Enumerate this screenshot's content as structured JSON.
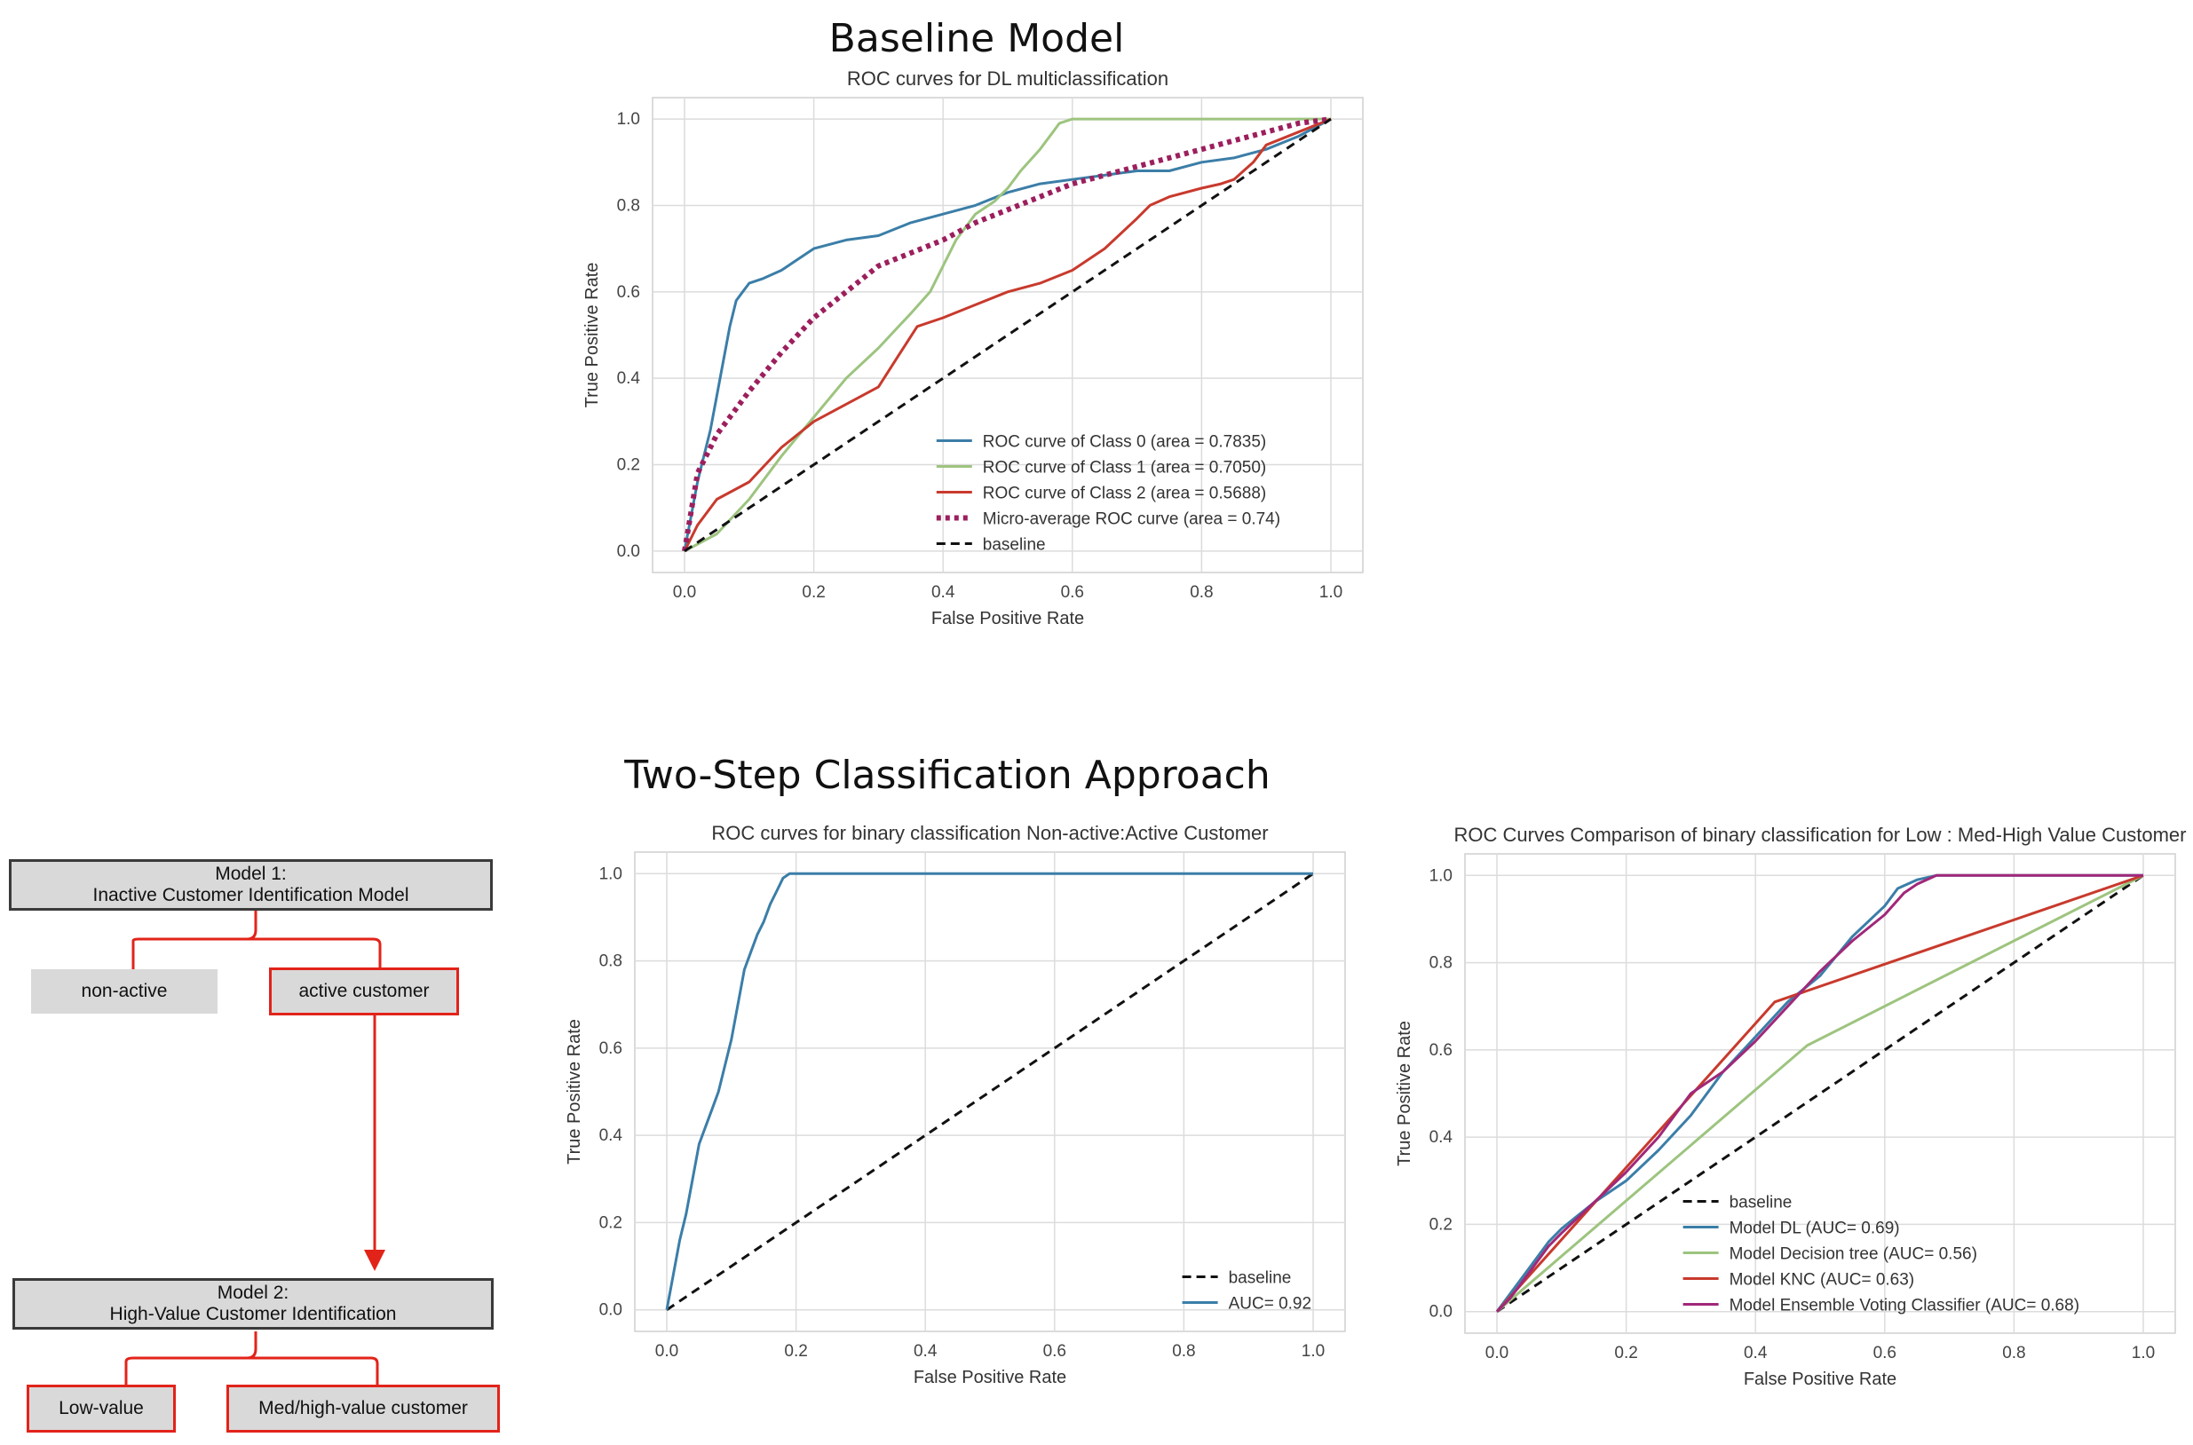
{
  "headings": {
    "top": "Baseline Model",
    "bottom": "Two-Step Classification Approach"
  },
  "flow": {
    "model1": "Model 1:\nInactive Customer Identification Model",
    "non_active": "non-active",
    "active": "active customer",
    "model2": "Model 2:\nHigh-Value Customer Identification",
    "low_value": "Low-value",
    "high_value": "Med/high-value customer",
    "colors": {
      "box_fill": "#d9d9d9",
      "accent": "#e2231a"
    }
  },
  "chart_data": [
    {
      "type": "line",
      "title": "ROC curves for DL multiclassification",
      "xlabel": "False Positive Rate",
      "ylabel": "True Positive Rate",
      "xlim": [
        0,
        1
      ],
      "ylim": [
        0,
        1
      ],
      "ticks": [
        0.0,
        0.2,
        0.4,
        0.6,
        0.8,
        1.0
      ],
      "grid": true,
      "legend_position": "bottom-right",
      "series": [
        {
          "name": "ROC curve of Class 0 (area = 0.7835)",
          "color": "#3b7ea8",
          "style": "solid",
          "x": [
            0,
            0.005,
            0.01,
            0.015,
            0.02,
            0.03,
            0.04,
            0.05,
            0.06,
            0.07,
            0.08,
            0.09,
            0.1,
            0.12,
            0.15,
            0.18,
            0.2,
            0.25,
            0.3,
            0.35,
            0.4,
            0.45,
            0.5,
            0.55,
            0.6,
            0.65,
            0.7,
            0.75,
            0.8,
            0.85,
            0.9,
            0.95,
            1.0
          ],
          "y": [
            0,
            0.04,
            0.08,
            0.12,
            0.16,
            0.22,
            0.28,
            0.36,
            0.44,
            0.52,
            0.58,
            0.6,
            0.62,
            0.63,
            0.65,
            0.68,
            0.7,
            0.72,
            0.73,
            0.76,
            0.78,
            0.8,
            0.83,
            0.85,
            0.86,
            0.87,
            0.88,
            0.88,
            0.9,
            0.91,
            0.93,
            0.96,
            1.0
          ]
        },
        {
          "name": "ROC curve of Class 1 (area = 0.7050)",
          "color": "#9dc47f",
          "style": "solid",
          "x": [
            0,
            0.05,
            0.1,
            0.15,
            0.2,
            0.25,
            0.3,
            0.35,
            0.38,
            0.4,
            0.42,
            0.45,
            0.48,
            0.5,
            0.52,
            0.55,
            0.57,
            0.58,
            0.6,
            0.7,
            0.8,
            0.9,
            1.0
          ],
          "y": [
            0,
            0.04,
            0.12,
            0.22,
            0.31,
            0.4,
            0.47,
            0.55,
            0.6,
            0.66,
            0.72,
            0.78,
            0.81,
            0.84,
            0.88,
            0.93,
            0.97,
            0.99,
            1.0,
            1.0,
            1.0,
            1.0,
            1.0
          ]
        },
        {
          "name": "ROC curve of Class 2 (area = 0.5688)",
          "color": "#c83a2d",
          "style": "solid",
          "x": [
            0,
            0.02,
            0.05,
            0.1,
            0.15,
            0.2,
            0.25,
            0.3,
            0.33,
            0.36,
            0.4,
            0.45,
            0.5,
            0.55,
            0.6,
            0.65,
            0.7,
            0.72,
            0.75,
            0.8,
            0.83,
            0.85,
            0.88,
            0.9,
            0.95,
            1.0
          ],
          "y": [
            0,
            0.06,
            0.12,
            0.16,
            0.24,
            0.3,
            0.34,
            0.38,
            0.45,
            0.52,
            0.54,
            0.57,
            0.6,
            0.62,
            0.65,
            0.7,
            0.77,
            0.8,
            0.82,
            0.84,
            0.85,
            0.86,
            0.9,
            0.94,
            0.97,
            1.0
          ]
        },
        {
          "name": "Micro-average ROC curve (area = 0.74)",
          "color": "#9c1f5d",
          "style": "dotted",
          "x": [
            0,
            0.02,
            0.05,
            0.1,
            0.15,
            0.2,
            0.25,
            0.3,
            0.35,
            0.4,
            0.45,
            0.5,
            0.55,
            0.6,
            0.65,
            0.7,
            0.75,
            0.8,
            0.85,
            0.9,
            0.95,
            1.0
          ],
          "y": [
            0,
            0.18,
            0.27,
            0.37,
            0.46,
            0.54,
            0.6,
            0.66,
            0.69,
            0.72,
            0.76,
            0.79,
            0.82,
            0.85,
            0.87,
            0.89,
            0.91,
            0.93,
            0.95,
            0.97,
            0.99,
            1.0
          ]
        },
        {
          "name": "baseline",
          "color": "#111111",
          "style": "dashed",
          "x": [
            0,
            1
          ],
          "y": [
            0,
            1
          ]
        }
      ]
    },
    {
      "type": "line",
      "title": "ROC curves for binary classification Non-active:Active Customer",
      "xlabel": "False Positive Rate",
      "ylabel": "True Positive Rate",
      "xlim": [
        0,
        1
      ],
      "ylim": [
        0,
        1
      ],
      "ticks": [
        0.0,
        0.2,
        0.4,
        0.6,
        0.8,
        1.0
      ],
      "grid": true,
      "legend_position": "bottom-right",
      "series": [
        {
          "name": "baseline",
          "color": "#111111",
          "style": "dashed",
          "x": [
            0,
            1
          ],
          "y": [
            0,
            1
          ]
        },
        {
          "name": "AUC= 0.92",
          "color": "#3b7ea8",
          "style": "solid",
          "x": [
            0,
            0.01,
            0.02,
            0.03,
            0.04,
            0.05,
            0.06,
            0.07,
            0.08,
            0.09,
            0.1,
            0.11,
            0.12,
            0.13,
            0.14,
            0.15,
            0.16,
            0.17,
            0.18,
            0.19,
            0.2,
            0.3,
            0.5,
            0.7,
            1.0
          ],
          "y": [
            0,
            0.08,
            0.16,
            0.22,
            0.3,
            0.38,
            0.42,
            0.46,
            0.5,
            0.56,
            0.62,
            0.7,
            0.78,
            0.82,
            0.86,
            0.89,
            0.93,
            0.96,
            0.99,
            1.0,
            1.0,
            1.0,
            1.0,
            1.0,
            1.0
          ]
        }
      ]
    },
    {
      "type": "line",
      "title": "ROC Curves Comparison of binary classification for Low : Med-High Value Customer",
      "xlabel": "False Positive Rate",
      "ylabel": "True Positive Rate",
      "xlim": [
        0,
        1
      ],
      "ylim": [
        0,
        1
      ],
      "ticks": [
        0.0,
        0.2,
        0.4,
        0.6,
        0.8,
        1.0
      ],
      "grid": true,
      "legend_position": "bottom-right",
      "series": [
        {
          "name": "baseline",
          "color": "#111111",
          "style": "dashed",
          "x": [
            0,
            1
          ],
          "y": [
            0,
            1
          ]
        },
        {
          "name": "Model DL (AUC= 0.69)",
          "color": "#3b7ea8",
          "style": "solid",
          "x": [
            0,
            0.02,
            0.05,
            0.08,
            0.1,
            0.15,
            0.2,
            0.25,
            0.3,
            0.35,
            0.4,
            0.45,
            0.5,
            0.55,
            0.6,
            0.62,
            0.65,
            0.68,
            0.7,
            0.75,
            0.8,
            0.9,
            1.0
          ],
          "y": [
            0,
            0.04,
            0.1,
            0.16,
            0.19,
            0.25,
            0.3,
            0.37,
            0.45,
            0.55,
            0.63,
            0.71,
            0.77,
            0.86,
            0.93,
            0.97,
            0.99,
            1.0,
            1.0,
            1.0,
            1.0,
            1.0,
            1.0
          ]
        },
        {
          "name": "Model Decision tree (AUC= 0.56)",
          "color": "#9dc47f",
          "style": "solid",
          "x": [
            0,
            0.48,
            1.0
          ],
          "y": [
            0,
            0.61,
            1.0
          ]
        },
        {
          "name": "Model KNC (AUC= 0.63)",
          "color": "#c83a2d",
          "style": "solid",
          "x": [
            0,
            0.43,
            1.0
          ],
          "y": [
            0,
            0.71,
            1.0
          ]
        },
        {
          "name": "Model Ensemble Voting Classifier (AUC= 0.68)",
          "color": "#a0287a",
          "style": "solid",
          "x": [
            0,
            0.02,
            0.05,
            0.08,
            0.1,
            0.15,
            0.2,
            0.25,
            0.3,
            0.35,
            0.4,
            0.45,
            0.5,
            0.55,
            0.6,
            0.63,
            0.65,
            0.68,
            0.7,
            0.8,
            0.9,
            1.0
          ],
          "y": [
            0,
            0.03,
            0.09,
            0.15,
            0.18,
            0.25,
            0.32,
            0.4,
            0.5,
            0.55,
            0.62,
            0.7,
            0.78,
            0.85,
            0.91,
            0.96,
            0.98,
            1.0,
            1.0,
            1.0,
            1.0,
            1.0
          ]
        }
      ]
    }
  ]
}
